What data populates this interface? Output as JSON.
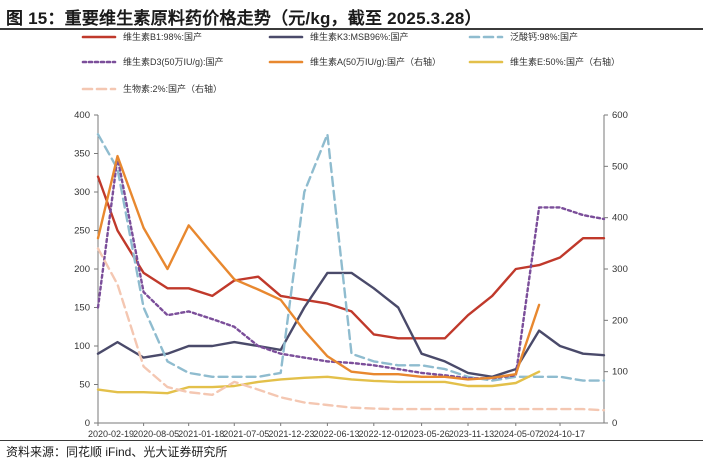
{
  "title": "图 15：重要维生素原料药价格走势（元/kg，截至 2025.3.28）",
  "source": "资料来源：同花顺 iFind、光大证券研究所",
  "chart_data": {
    "type": "line",
    "title": "重要维生素原料药价格走势（元/kg，截至 2025.3.28）",
    "x": [
      "2020-02-19",
      "2020-05-01",
      "2020-08-05",
      "2020-11-01",
      "2021-01-18",
      "2021-04-15",
      "2021-07-05",
      "2021-10-01",
      "2021-12-23",
      "2022-03-20",
      "2022-06-13",
      "2022-09-10",
      "2022-12-01",
      "2023-03-01",
      "2023-05-26",
      "2023-08-20",
      "2023-11-13",
      "2024-02-10",
      "2024-05-07",
      "2024-08-01",
      "2024-10-17",
      "2025-01-10",
      "2025-03-28"
    ],
    "xticks": [
      "2020-02-19",
      "2020-08-05",
      "2021-01-18",
      "2021-07-05",
      "2021-12-23",
      "2022-06-13",
      "2022-12-01",
      "2023-05-26",
      "2023-11-13",
      "2024-05-07",
      "2024-10-17"
    ],
    "ylim_left": [
      0,
      400
    ],
    "yticks_left": [
      "0",
      "50",
      "100",
      "150",
      "200",
      "250",
      "300",
      "350",
      "400"
    ],
    "ylim_right": [
      0,
      600
    ],
    "yticks_right": [
      "0",
      "100",
      "200",
      "300",
      "400",
      "500",
      "600"
    ],
    "grid": false,
    "legend_position": "top",
    "series": [
      {
        "name": "维生素B1:98%:国产",
        "color": "#C0392B",
        "axis": "left",
        "dash": "solid",
        "values": [
          320,
          250,
          195,
          175,
          175,
          165,
          185,
          190,
          165,
          160,
          155,
          145,
          115,
          110,
          110,
          110,
          140,
          165,
          200,
          205,
          215,
          240,
          240
        ]
      },
      {
        "name": "维生素K3:MSB96%:国产",
        "color": "#4A4A6A",
        "axis": "left",
        "dash": "solid",
        "values": [
          90,
          105,
          85,
          90,
          100,
          100,
          105,
          100,
          95,
          150,
          195,
          195,
          175,
          150,
          90,
          80,
          65,
          60,
          70,
          120,
          100,
          90,
          88
        ]
      },
      {
        "name": "泛酸钙:98%:国产",
        "color": "#8FBCCF",
        "axis": "left",
        "dash": "dash",
        "values": [
          375,
          330,
          150,
          80,
          65,
          60,
          60,
          60,
          65,
          300,
          375,
          90,
          80,
          75,
          75,
          70,
          60,
          55,
          60,
          60,
          60,
          55,
          55
        ]
      },
      {
        "name": "维生素D3(50万IU/g):国产",
        "color": "#7B4E9A",
        "axis": "left",
        "dash": "dot",
        "values": [
          150,
          345,
          170,
          140,
          145,
          135,
          125,
          100,
          90,
          85,
          80,
          78,
          75,
          70,
          65,
          62,
          58,
          58,
          62,
          280,
          280,
          270,
          265
        ]
      },
      {
        "name": "维生素A(50万IU/g):国产（右轴）",
        "color": "#E8882F",
        "axis": "right",
        "dash": "solid",
        "values": [
          360,
          520,
          380,
          300,
          385,
          330,
          280,
          260,
          240,
          180,
          130,
          100,
          95,
          95,
          90,
          90,
          85,
          88,
          95,
          230,
          null,
          null,
          null
        ]
      },
      {
        "name": "维生素E:50%:国产（右轴）",
        "color": "#E3C04A",
        "axis": "right",
        "dash": "solid",
        "values": [
          65,
          60,
          60,
          58,
          70,
          70,
          72,
          80,
          85,
          88,
          90,
          85,
          82,
          80,
          80,
          80,
          72,
          72,
          78,
          100,
          null,
          null,
          null
        ]
      },
      {
        "name": "生物素:2%:国产（右轴）",
        "color": "#F4C7B2",
        "axis": "right",
        "dash": "dash",
        "values": [
          340,
          270,
          110,
          70,
          60,
          55,
          80,
          65,
          50,
          40,
          35,
          30,
          28,
          27,
          27,
          27,
          27,
          27,
          27,
          27,
          27,
          27,
          25
        ]
      }
    ]
  }
}
